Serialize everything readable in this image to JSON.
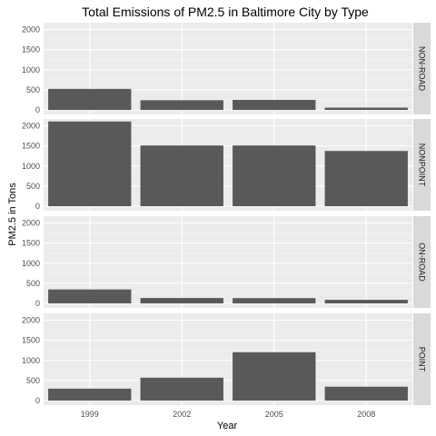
{
  "chart_data": {
    "type": "bar",
    "title": "Total Emissions of PM2.5 in Baltimore City by Type",
    "xlabel": "Year",
    "ylabel": "PM2.5 in Tons",
    "categories": [
      "1999",
      "2002",
      "2005",
      "2008"
    ],
    "ylim": [
      0,
      2200
    ],
    "yticks": [
      0,
      500,
      1000,
      1500,
      2000
    ],
    "facet": "vertical",
    "grid": true,
    "colors": {
      "bar": "#595959",
      "panel": "#ebebeb",
      "grid_major": "#ffffff",
      "strip": "#d9d9d9"
    },
    "panels": [
      {
        "strip": "NON-ROAD",
        "values": [
          522,
          241,
          249,
          56
        ]
      },
      {
        "strip": "NONPOINT",
        "values": [
          2108,
          1510,
          1510,
          1373
        ]
      },
      {
        "strip": "ON-ROAD",
        "values": [
          347,
          134,
          131,
          88
        ]
      },
      {
        "strip": "POINT",
        "values": [
          297,
          569,
          1203,
          345
        ]
      }
    ]
  }
}
